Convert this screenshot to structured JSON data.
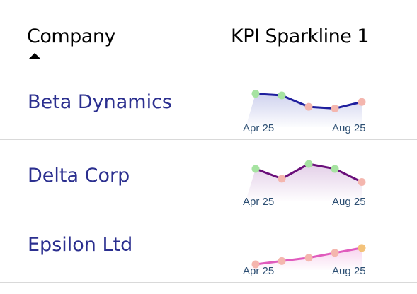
{
  "table": {
    "columns": {
      "company": "Company",
      "kpi": "KPI Sparkline 1"
    },
    "sort": {
      "column": "company",
      "direction": "ascending",
      "icon": "sort-ascending-icon"
    },
    "axis": {
      "start_label": "Apr 25",
      "end_label": "Aug 25"
    },
    "rows": [
      {
        "company": "Beta Dynamics",
        "line_color": "#1f1f9e",
        "fill_color": "#cfd2ee",
        "values": [
          75,
          74,
          67,
          66,
          70
        ],
        "marker_colors": [
          "#a6e3a1",
          "#a6e3a1",
          "#f4b6ae",
          "#f4b6ae",
          "#f4b6ae"
        ]
      },
      {
        "company": "Delta Corp",
        "line_color": "#6a0f7a",
        "fill_color": "#e3cfe8",
        "values": [
          74,
          68,
          77,
          74,
          66
        ],
        "marker_colors": [
          "#a6e3a1",
          "#f4b6ae",
          "#a6e3a1",
          "#a6e3a1",
          "#f4b6ae"
        ]
      },
      {
        "company": "Epsilon Ltd",
        "line_color": "#e05bbd",
        "fill_color": "#f7d3ee",
        "values": [
          58,
          60,
          62,
          65,
          68
        ],
        "marker_colors": [
          "#f4b6ae",
          "#f4b6ae",
          "#f4b6ae",
          "#f4b6ae",
          "#f3c27a"
        ]
      }
    ]
  }
}
